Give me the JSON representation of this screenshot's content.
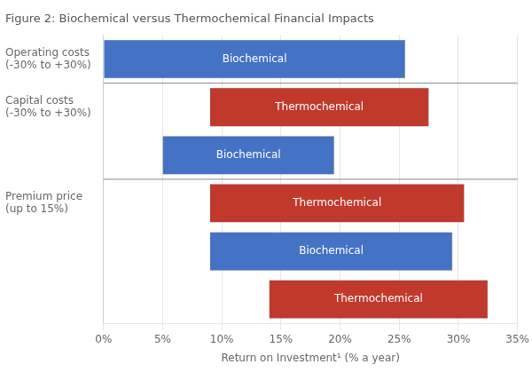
{
  "chart_data": {
    "type": "bar",
    "orientation": "horizontal",
    "title": "Figure 2: Biochemical versus Thermochemical Financial Impacts",
    "x_label": "Return on Investment¹ (% a year)",
    "categories": [
      "Operating costs\n(-30% to +30%)",
      "Capital costs\n(-30% to +30%)",
      null,
      "Premium price\n(up to 15%)",
      null,
      null
    ],
    "series": [
      {
        "name": "Biochemical",
        "color": "#4472C4",
        "values": [
          [
            0.0,
            25.5
          ],
          null,
          [
            5.0,
            19.5
          ],
          null,
          [
            9.0,
            29.5
          ],
          null
        ]
      },
      {
        "name": "Thermochemical",
        "color": "#C0392B",
        "values": [
          null,
          [
            9.0,
            27.5
          ],
          null,
          [
            9.0,
            30.5
          ],
          null,
          [
            14.0,
            32.5
          ]
        ]
      }
    ],
    "xlim": [
      0,
      35
    ],
    "xticks": [
      {
        "value": 0,
        "label": "0%"
      },
      {
        "value": 5,
        "label": "5%"
      },
      {
        "value": 10,
        "label": "10%"
      },
      {
        "value": 15,
        "label": "15%"
      },
      {
        "value": 20,
        "label": "20%"
      },
      {
        "value": 25,
        "label": "25%"
      },
      {
        "value": 30,
        "label": "30%"
      },
      {
        "value": 35,
        "label": "35%"
      }
    ],
    "grid": true
  }
}
